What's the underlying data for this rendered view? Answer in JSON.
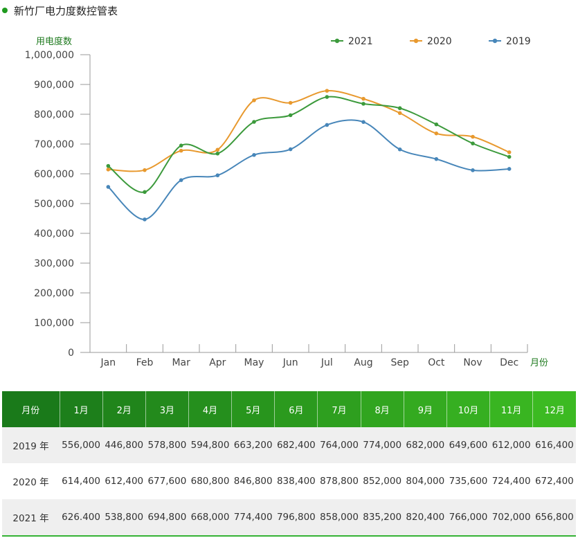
{
  "page": {
    "title": "新竹厂电力度数控管表"
  },
  "colors": {
    "series_2021": "#3c9a3c",
    "series_2020": "#e8992e",
    "series_2019": "#4786b9",
    "header_start": "#1a7a1a",
    "header_end": "#3cba22",
    "title_dot": "#1f9a1f"
  },
  "chart_data": {
    "type": "line",
    "categories": [
      "Jan",
      "Feb",
      "Mar",
      "Apr",
      "May",
      "Jun",
      "Jul",
      "Aug",
      "Sep",
      "Oct",
      "Nov",
      "Dec"
    ],
    "ylabel": "用电度数",
    "xlabel": "月份",
    "ylim": [
      0,
      1000000
    ],
    "yticks": [
      0,
      100000,
      200000,
      300000,
      400000,
      500000,
      600000,
      700000,
      800000,
      900000,
      1000000
    ],
    "ytick_labels": [
      "0",
      "100,000",
      "200,000",
      "300,000",
      "400,000",
      "500,000",
      "600,000",
      "700,000",
      "800,000",
      "900,000",
      "1,000,000"
    ],
    "grid": false,
    "legend_position": "top-right",
    "smooth": true,
    "series": [
      {
        "name": "2021",
        "color": "#3c9a3c",
        "values": [
          626400,
          538800,
          694800,
          668000,
          774400,
          796800,
          858000,
          835200,
          820400,
          766000,
          702000,
          656800
        ]
      },
      {
        "name": "2020",
        "color": "#e8992e",
        "values": [
          614400,
          612400,
          677600,
          680800,
          846800,
          838400,
          878800,
          852000,
          804000,
          735600,
          724400,
          672400
        ]
      },
      {
        "name": "2019",
        "color": "#4786b9",
        "values": [
          556000,
          446800,
          578800,
          594800,
          663200,
          682400,
          764000,
          774000,
          682000,
          649600,
          612000,
          616400
        ]
      }
    ]
  },
  "table": {
    "header": [
      "月份",
      "1月",
      "2月",
      "3月",
      "4月",
      "5月",
      "6月",
      "7月",
      "8月",
      "9月",
      "10月",
      "11月",
      "12月"
    ],
    "rows": [
      {
        "label": "2019 年",
        "cells": [
          "556,000",
          "446,800",
          "578,800",
          "594,800",
          "663,200",
          "682,400",
          "764,000",
          "774,000",
          "682,000",
          "649,600",
          "612,000",
          "616,400"
        ]
      },
      {
        "label": "2020 年",
        "cells": [
          "614,400",
          "612,400",
          "677,600",
          "680,800",
          "846,800",
          "838,400",
          "878,800",
          "852,000",
          "804,000",
          "735,600",
          "724,400",
          "672,400"
        ]
      },
      {
        "label": "2021 年",
        "cells": [
          "626.400",
          "538,800",
          "694,800",
          "668,000",
          "774,400",
          "796,800",
          "858,000",
          "835,200",
          "820,400",
          "766,000",
          "702,000",
          "656,800"
        ]
      }
    ]
  }
}
